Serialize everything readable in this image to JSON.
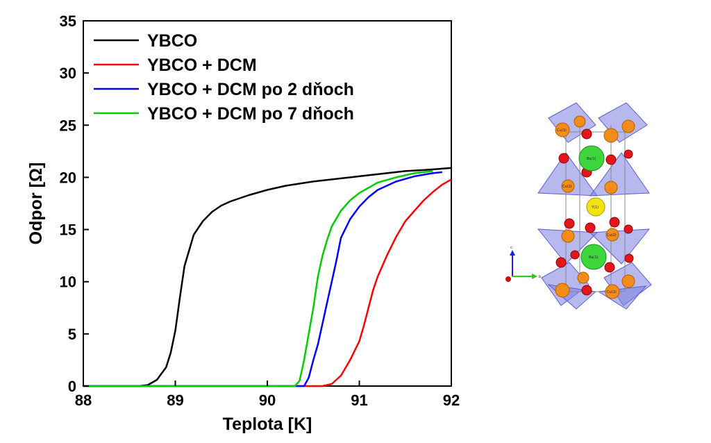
{
  "chart_data": {
    "type": "line",
    "xlabel": "Teplota [K]",
    "ylabel": "Odpor [Ω]",
    "xlim": [
      88,
      92
    ],
    "ylim": [
      0,
      35
    ],
    "xticks": [
      "88",
      "89",
      "90",
      "91",
      "92"
    ],
    "yticks": [
      "0",
      "5",
      "10",
      "15",
      "20",
      "25",
      "30",
      "35"
    ],
    "legend_position": "top-left",
    "grid": false,
    "series": [
      {
        "name": "YBCO",
        "color": "#000000",
        "x": [
          88.6,
          88.7,
          88.8,
          88.9,
          88.95,
          89.0,
          89.05,
          89.1,
          89.15,
          89.2,
          89.3,
          89.4,
          89.5,
          89.6,
          89.8,
          90.0,
          90.2,
          90.5,
          90.8,
          91.0,
          91.3,
          91.5,
          91.7,
          92.0
        ],
        "y": [
          0,
          0.1,
          0.6,
          1.8,
          3.2,
          5.3,
          8.5,
          11.5,
          13.0,
          14.5,
          15.8,
          16.7,
          17.3,
          17.7,
          18.3,
          18.8,
          19.2,
          19.6,
          19.9,
          20.1,
          20.4,
          20.6,
          20.7,
          20.9
        ]
      },
      {
        "name": "YBCO + DCM",
        "color": "#ff0000",
        "x": [
          90.6,
          90.7,
          90.8,
          90.9,
          91.0,
          91.05,
          91.1,
          91.15,
          91.2,
          91.3,
          91.4,
          91.5,
          91.6,
          91.7,
          91.8,
          91.9,
          92.0
        ],
        "y": [
          0,
          0.2,
          1.0,
          2.5,
          4.3,
          5.8,
          7.5,
          9.2,
          10.5,
          12.5,
          14.3,
          15.8,
          16.8,
          17.8,
          18.6,
          19.3,
          19.8
        ]
      },
      {
        "name": "YBCO + DCM po 2 dňoch",
        "color": "#0000ff",
        "x": [
          90.4,
          90.45,
          90.5,
          90.55,
          90.6,
          90.65,
          90.7,
          90.75,
          90.8,
          90.9,
          91.0,
          91.1,
          91.2,
          91.4,
          91.6,
          91.8,
          91.9
        ],
        "y": [
          0,
          0.8,
          2.5,
          4.0,
          6.0,
          8.0,
          10.0,
          12.0,
          14.2,
          16.0,
          17.2,
          18.1,
          18.8,
          19.6,
          20.1,
          20.4,
          20.5
        ]
      },
      {
        "name": "YBCO + DCM po 7 dňoch",
        "color": "#00cc00",
        "x": [
          90.3,
          90.35,
          90.4,
          90.45,
          90.5,
          90.55,
          90.6,
          90.65,
          90.7,
          90.8,
          90.9,
          91.0,
          91.2,
          91.4,
          91.6,
          91.8
        ],
        "y": [
          0,
          0.5,
          2.5,
          5.0,
          7.5,
          10.5,
          12.5,
          14.0,
          15.3,
          16.8,
          17.8,
          18.5,
          19.5,
          20.0,
          20.4,
          20.6
        ]
      }
    ]
  },
  "crystal_figure": {
    "atom_labels": [
      "Cu(1)",
      "Ba(1)",
      "Cu(2)",
      "Y(1)",
      "Cu(2)",
      "Ba(1)",
      "Cu(1)"
    ],
    "axis_labels": [
      "c",
      "b"
    ],
    "colors": {
      "polyhedra": "#7b7fe0",
      "copper": "#f28c1a",
      "oxygen": "#e3161b",
      "barium": "#3dd63d",
      "yttrium": "#f2e411"
    }
  }
}
